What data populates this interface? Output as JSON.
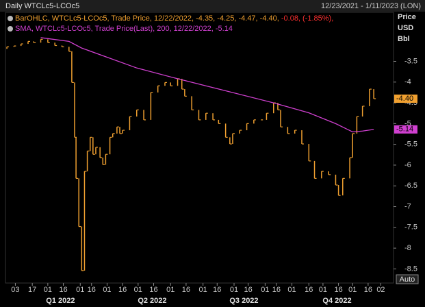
{
  "chart_data": {
    "type": "ohlc",
    "title": "Daily WTCLc5-LCOc5",
    "range_text": "12/23/2021 - 1/11/2023 (LON)",
    "axis_header": [
      "Price",
      "USD",
      "Bbl"
    ],
    "legend_lines": [
      {
        "text": "BarOHLC, WTCLc5-LCOc5, Trade Price, 12/22/2022, -4.35, -4.25, -4.47, -4.40, ",
        "change": "-0.08, (-1.85%),"
      },
      {
        "text": "SMA, WTCLc5-LCOc5, Trade Price(Last), 200, 12/22/2022, -5.14"
      }
    ],
    "auto_button": "Auto",
    "xlim": [
      0,
      275
    ],
    "ylim": [
      -8.84,
      -2.32
    ],
    "yticks": [
      -3.5,
      -4,
      -4.5,
      -5,
      -5.5,
      -6,
      -6.5,
      -7,
      -7.5,
      -8,
      -8.5
    ],
    "xticks": [
      {
        "value": 7,
        "label": "03"
      },
      {
        "value": 19,
        "label": "17"
      },
      {
        "value": 30,
        "label": "01"
      },
      {
        "value": 41,
        "label": "16"
      },
      {
        "value": 53,
        "label": "01"
      },
      {
        "value": 61,
        "label": "16"
      },
      {
        "value": 72,
        "label": "01"
      },
      {
        "value": 83,
        "label": "16"
      },
      {
        "value": 94,
        "label": "01"
      },
      {
        "value": 105,
        "label": "16"
      },
      {
        "value": 117,
        "label": "01"
      },
      {
        "value": 128,
        "label": "16"
      },
      {
        "value": 140,
        "label": "01"
      },
      {
        "value": 150,
        "label": "16"
      },
      {
        "value": 162,
        "label": "01"
      },
      {
        "value": 172,
        "label": "16"
      },
      {
        "value": 184,
        "label": "01"
      },
      {
        "value": 192,
        "label": "16"
      },
      {
        "value": 203,
        "label": "01"
      },
      {
        "value": 215,
        "label": "16"
      },
      {
        "value": 225,
        "label": "01"
      },
      {
        "value": 236,
        "label": "16"
      },
      {
        "value": 246,
        "label": "01"
      },
      {
        "value": 257,
        "label": "16"
      },
      {
        "value": 266,
        "label": "02"
      }
    ],
    "periods": [
      {
        "value": 39,
        "label": "Q1 2022"
      },
      {
        "value": 104,
        "label": "Q2 2022"
      },
      {
        "value": 169,
        "label": "Q3 2022"
      },
      {
        "value": 235,
        "label": "Q4 2022"
      }
    ],
    "series": [
      {
        "name": "BarOHLC",
        "color": "#f0a030",
        "last_label": "-4.40",
        "x": [
          1,
          6,
          11,
          16,
          20,
          25,
          30,
          35,
          40,
          45,
          47,
          49,
          50,
          52,
          54,
          56,
          58,
          60,
          62,
          64,
          67,
          69,
          71,
          74,
          76,
          79,
          81,
          83,
          88,
          93,
          98,
          103,
          108,
          113,
          117,
          122,
          125,
          127,
          132,
          137,
          142,
          147,
          151,
          156,
          159,
          161,
          166,
          171,
          176,
          181,
          185,
          190,
          193,
          195,
          200,
          205,
          210,
          215,
          219,
          224,
          229,
          234,
          236,
          239,
          244,
          246,
          249,
          253,
          258,
          261
        ],
        "values": [
          -3.15,
          -3.13,
          -3.08,
          -3.02,
          -3.05,
          -2.97,
          -3.05,
          -3.12,
          -3.15,
          -3.26,
          -4.01,
          -5.33,
          -6.32,
          -7.48,
          -8.54,
          -6.15,
          -5.66,
          -5.33,
          -5.74,
          -5.57,
          -5.82,
          -5.99,
          -5.74,
          -5.33,
          -5.24,
          -5.08,
          -5.24,
          -5.16,
          -4.83,
          -4.67,
          -4.91,
          -4.25,
          -4.09,
          -4.01,
          -4.09,
          -3.92,
          -4.17,
          -4.34,
          -4.67,
          -4.91,
          -4.75,
          -4.91,
          -5.0,
          -5.33,
          -5.49,
          -5.24,
          -5.16,
          -5.0,
          -4.91,
          -4.91,
          -4.75,
          -4.5,
          -4.67,
          -5.08,
          -5.24,
          -5.16,
          -5.49,
          -5.9,
          -6.32,
          -6.15,
          -6.23,
          -6.48,
          -6.73,
          -6.32,
          -5.82,
          -5.24,
          -4.83,
          -4.58,
          -4.17,
          -4.4
        ]
      },
      {
        "name": "SMA",
        "color": "#d040d0",
        "last_label": "-5.14",
        "x": [
          25,
          45,
          54,
          93,
          122,
          142,
          190,
          215,
          234,
          246,
          253,
          261
        ],
        "values": [
          -2.93,
          -3.02,
          -3.18,
          -3.66,
          -3.92,
          -4.09,
          -4.5,
          -4.74,
          -5.0,
          -5.2,
          -5.18,
          -5.14
        ]
      }
    ]
  }
}
